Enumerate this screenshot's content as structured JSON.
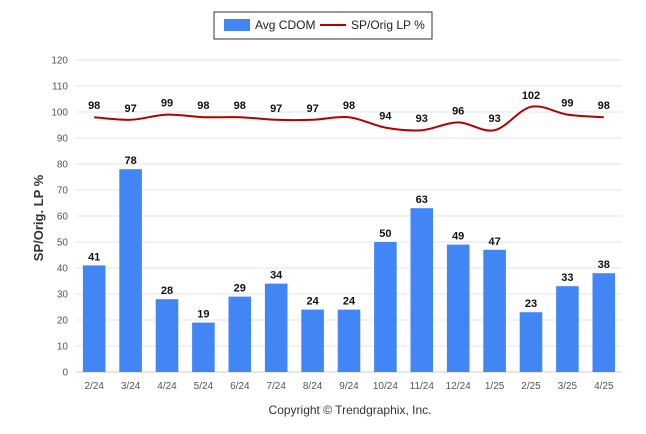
{
  "chart_data": {
    "type": "bar",
    "categories": [
      "2/24",
      "3/24",
      "4/24",
      "5/24",
      "6/24",
      "7/24",
      "8/24",
      "9/24",
      "10/24",
      "11/24",
      "12/24",
      "1/25",
      "2/25",
      "3/25",
      "4/25"
    ],
    "series": [
      {
        "name": "Avg CDOM",
        "type": "bar",
        "color": "#4285f4",
        "values": [
          41,
          78,
          28,
          19,
          29,
          34,
          24,
          24,
          50,
          63,
          49,
          47,
          23,
          33,
          38
        ]
      },
      {
        "name": "SP/Orig LP %",
        "type": "line",
        "color": "#b30000",
        "values": [
          98,
          97,
          99,
          98,
          98,
          97,
          97,
          98,
          94,
          93,
          96,
          93,
          102,
          99,
          98
        ]
      }
    ],
    "ylabel": "SP/Orig. LP %",
    "ylim": [
      0,
      120
    ],
    "yticks": [
      0,
      10,
      20,
      30,
      40,
      50,
      60,
      70,
      80,
      90,
      100,
      110,
      120
    ],
    "grid": true,
    "legend": "top-center",
    "data_labels": true
  },
  "footer": {
    "copyright": "Copyright © Trendgraphix, Inc."
  }
}
